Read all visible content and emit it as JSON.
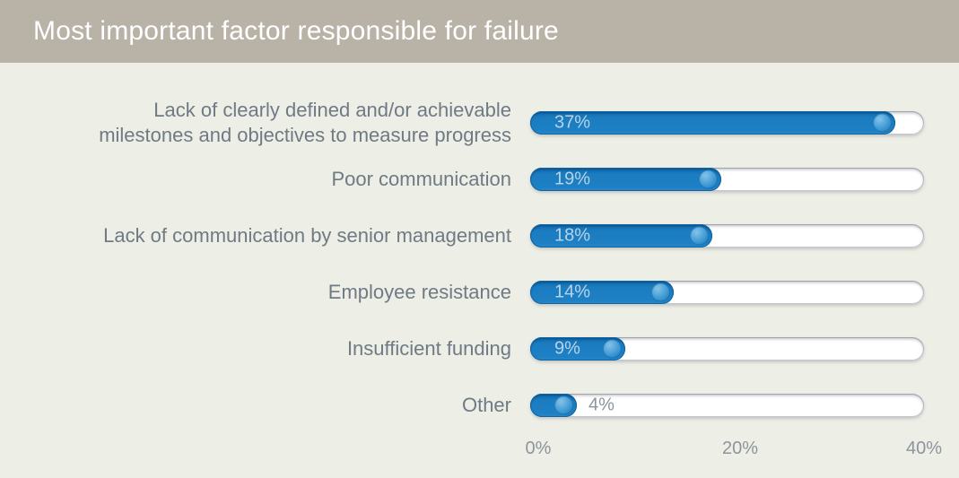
{
  "header": {
    "title": "Most important factor responsible for failure"
  },
  "chart_data": {
    "type": "bar",
    "orientation": "horizontal",
    "title": "Most important factor responsible for failure",
    "categories": [
      "Lack of clearly defined and/or achievable\nmilestones and objectives to measure progress",
      "Poor communication",
      "Lack of communication by senior management",
      "Employee resistance",
      "Insufficient funding",
      "Other"
    ],
    "values": [
      37,
      19,
      18,
      14,
      9,
      4
    ],
    "value_labels": [
      "37%",
      "19%",
      "18%",
      "14%",
      "9%",
      "4%"
    ],
    "x_ticks": [
      "0%",
      "20%",
      "40%"
    ],
    "xlim": [
      0,
      40
    ],
    "grid": false,
    "legend": "none",
    "colors": {
      "header_bg": "#b9b2a6",
      "page_bg": "#edeee6",
      "bar_fill": "#1b7cc0",
      "bar_track": "#ffffff",
      "knob_highlight": "#85c3e9",
      "knob_main": "#2187c8",
      "category_text": "#6f7a85",
      "axis_text": "#8d949b",
      "bar_label_inside_text": "#b7d3e8",
      "title_text": "#ffffff"
    }
  }
}
